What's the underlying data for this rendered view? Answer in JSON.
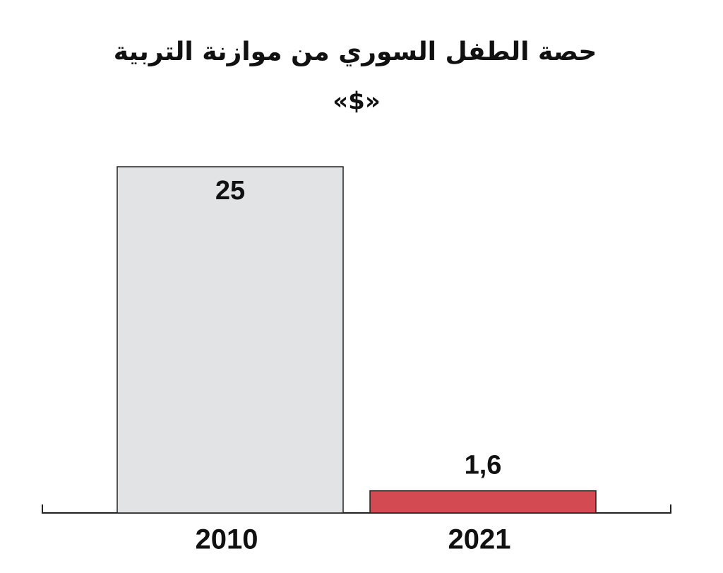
{
  "chart_data": {
    "type": "bar",
    "title": "حصة الطفل السوري من موازنة التربية",
    "subtitle": "«$»",
    "categories": [
      "2010",
      "2021"
    ],
    "values": [
      25,
      1.6
    ],
    "value_labels": [
      "25",
      "1,6"
    ],
    "colors": [
      "#e2e3e5",
      "#d44a52"
    ]
  }
}
